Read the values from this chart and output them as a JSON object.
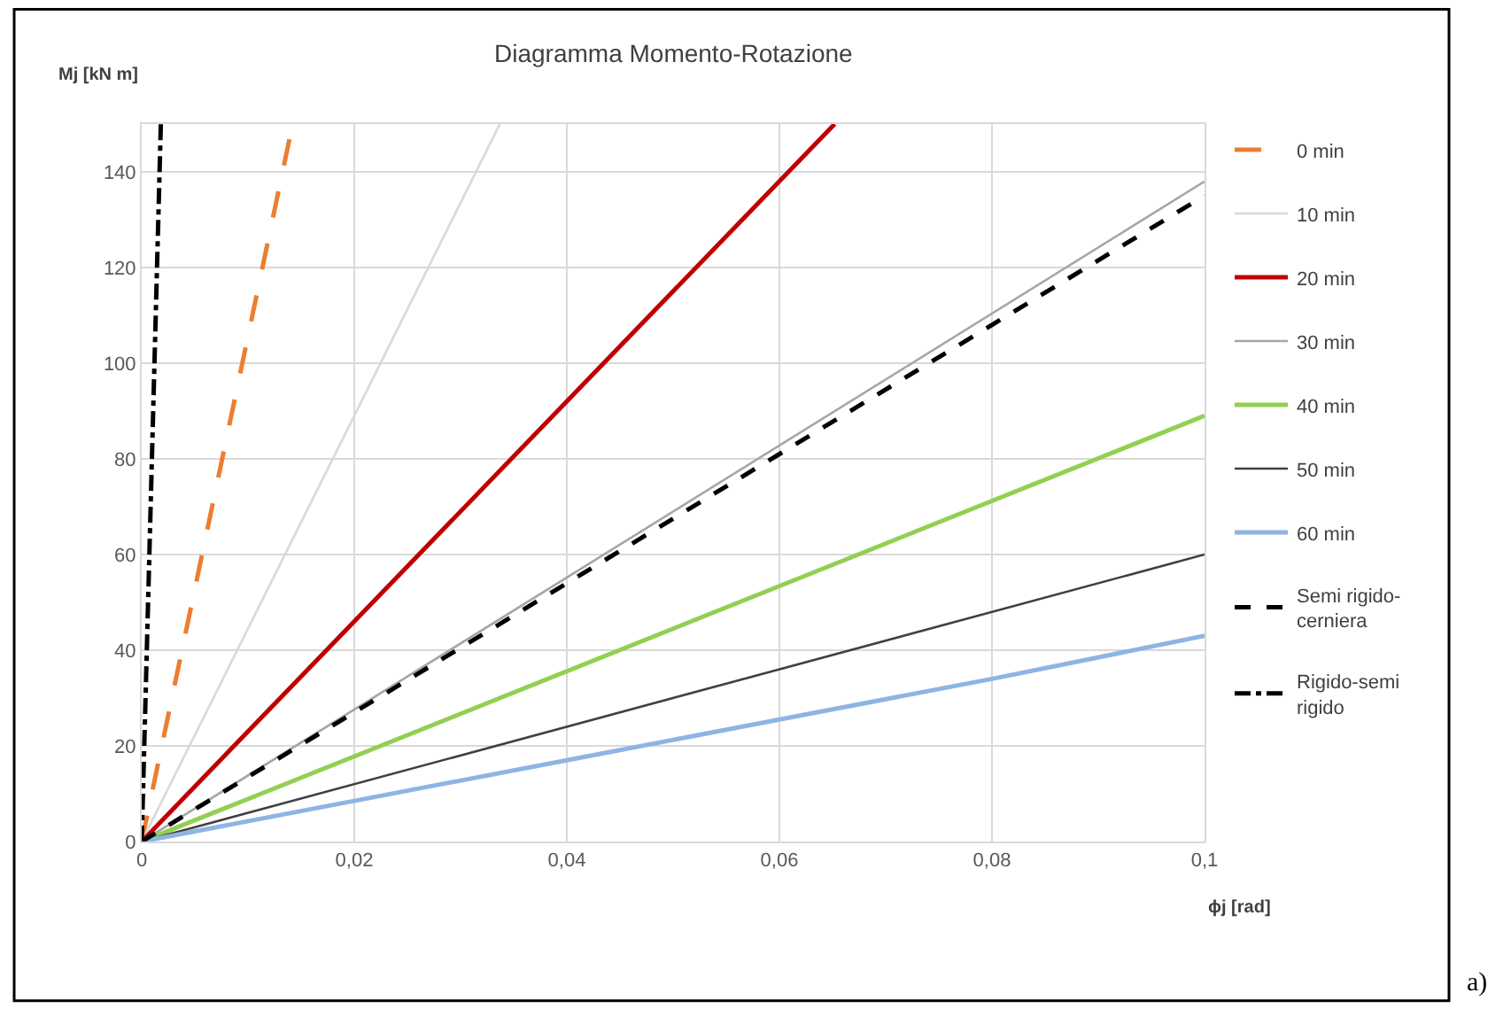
{
  "chart_data": {
    "type": "line",
    "title": "Diagramma Momento-Rotazione",
    "xlabel": "ϕj [rad]",
    "ylabel": "Mj [kN m]",
    "xlim": [
      0,
      0.1
    ],
    "xticks": [
      0,
      {
        "value": 0.02,
        "label": "0,02"
      },
      {
        "value": 0.04,
        "label": "0,04"
      },
      {
        "value": 0.06,
        "label": "0,06"
      },
      {
        "value": 0.08,
        "label": "0,08"
      },
      {
        "value": 0.1,
        "label": "0,1"
      }
    ],
    "ylim": [
      0,
      150
    ],
    "yticks": [
      0,
      20,
      40,
      60,
      80,
      100,
      120,
      140
    ],
    "grid": true,
    "legend": "right",
    "marker": "none",
    "annotations": [
      "a)"
    ],
    "series": [
      {
        "name": "0 min",
        "color": "#ed7d31",
        "line_style": "longdash",
        "x": [
          0,
          0.0142
        ],
        "values": [
          0,
          150
        ]
      },
      {
        "name": "10 min",
        "color": "#d9d9d9",
        "line_style": "solid",
        "x": [
          0,
          0.0337
        ],
        "values": [
          0,
          150
        ]
      },
      {
        "name": "20 min",
        "color": "#c00000",
        "line_style": "solid",
        "x": [
          0,
          0.0652
        ],
        "values": [
          0,
          150
        ]
      },
      {
        "name": "30 min",
        "color": "#a6a6a6",
        "line_style": "solid",
        "x": [
          0,
          0.1
        ],
        "values": [
          0,
          138
        ]
      },
      {
        "name": "40 min",
        "color": "#92d050",
        "line_style": "solid",
        "x": [
          0,
          0.1
        ],
        "values": [
          0,
          89
        ]
      },
      {
        "name": "50 min",
        "color": "#404040",
        "line_style": "solid",
        "x": [
          0,
          0.1
        ],
        "values": [
          0,
          60
        ]
      },
      {
        "name": "60 min",
        "color": "#8eb4e3",
        "line_style": "solid",
        "x": [
          0,
          0.02,
          0.04,
          0.06,
          0.08,
          0.1
        ],
        "values": [
          0,
          8.5,
          17,
          25.5,
          34,
          43
        ]
      },
      {
        "name": "Semi rigido-cerniera",
        "color": "#000000",
        "line_style": "dashed",
        "x": [
          0,
          0.1
        ],
        "values": [
          0,
          135
        ]
      },
      {
        "name": "Rigido-semi rigido",
        "color": "#000000",
        "line_style": "dashdot",
        "x": [
          0,
          0.0018
        ],
        "values": [
          0,
          150
        ]
      }
    ]
  }
}
